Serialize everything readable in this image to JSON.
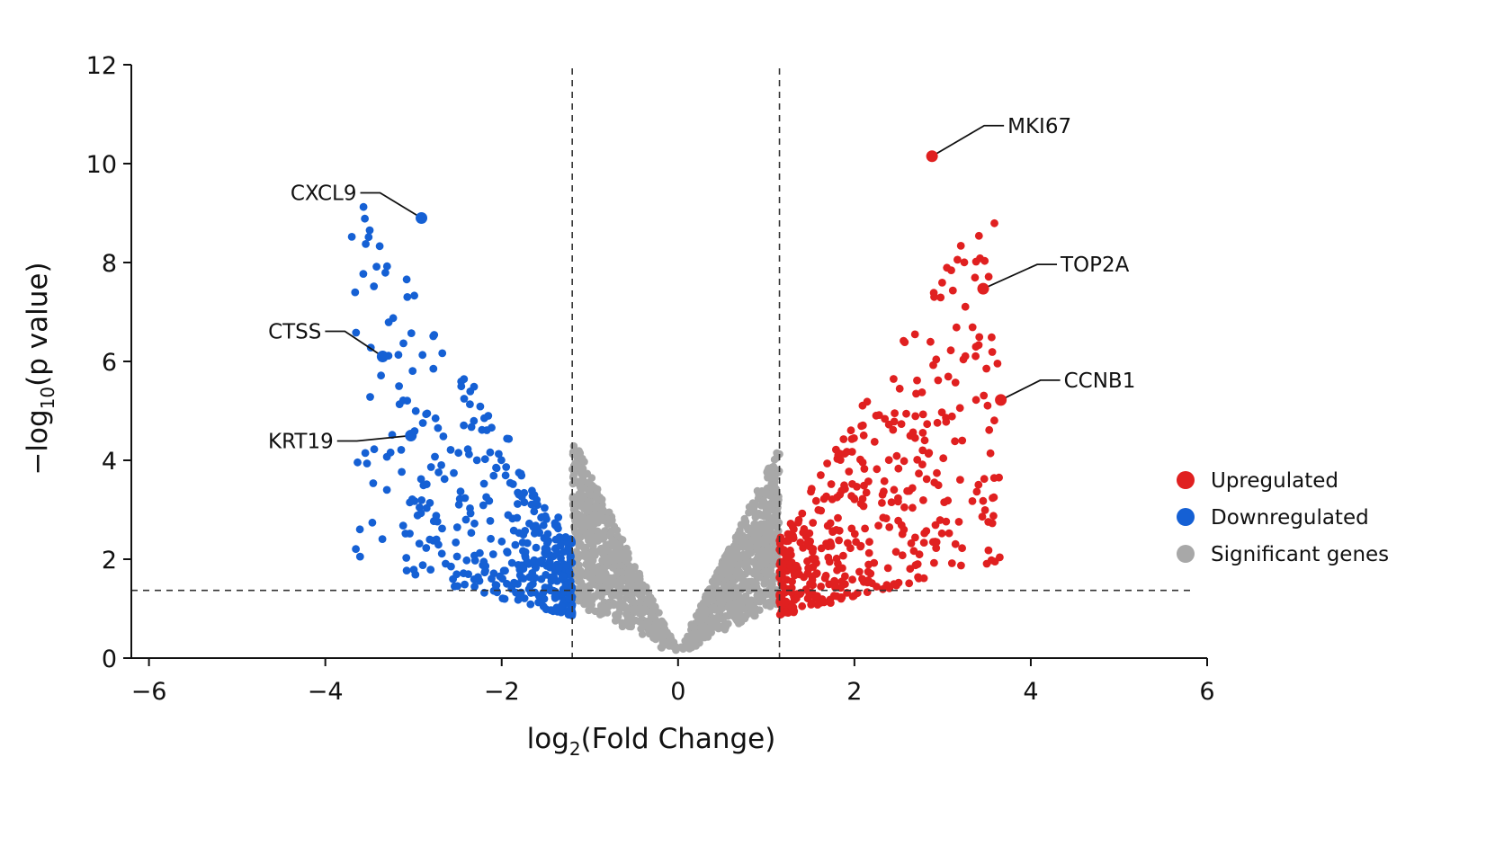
{
  "chart_data": {
    "type": "scatter",
    "title": "",
    "xlabel": {
      "prefix": "log",
      "sub": "2",
      "suffix": "(Fold Change)"
    },
    "ylabel": {
      "prefix": "−log",
      "sub": "10",
      "suffix": "(p value)"
    },
    "xlim": [
      -6.2,
      6
    ],
    "ylim": [
      0,
      12
    ],
    "xticks": [
      -6,
      -4,
      -2,
      0,
      2,
      4,
      6
    ],
    "xtick_labels": [
      "−6",
      "−4",
      "−2",
      "0",
      "2",
      "4",
      "6"
    ],
    "yticks": [
      0,
      2,
      4,
      6,
      8,
      10,
      12
    ],
    "ytick_labels": [
      "0",
      "2",
      "4",
      "6",
      "8",
      "10",
      "12"
    ],
    "thresholds": {
      "log2fc": [
        -1.2,
        1.15
      ],
      "neg_log10_p": 1.37
    },
    "grid": false,
    "legend_position": "right",
    "series": [
      {
        "name": "Upregulated",
        "color": "#e02020",
        "count": 420
      },
      {
        "name": "Downregulated",
        "color": "#1560d4",
        "count": 420
      },
      {
        "name": "Significant genes",
        "color": "#a8a8a8",
        "count": 1300
      }
    ],
    "labeled_points": [
      {
        "gene": "MKI67",
        "x": 2.88,
        "y": 10.15,
        "color": "#e02020"
      },
      {
        "gene": "TOP2A",
        "x": 3.46,
        "y": 7.47,
        "color": "#e02020"
      },
      {
        "gene": "CCNB1",
        "x": 3.66,
        "y": 5.22,
        "color": "#e02020"
      },
      {
        "gene": "CXCL9",
        "x": -2.91,
        "y": 8.9,
        "color": "#1560d4"
      },
      {
        "gene": "CTSS",
        "x": -3.35,
        "y": 6.1,
        "color": "#1560d4"
      },
      {
        "gene": "KRT19",
        "x": -3.03,
        "y": 4.5,
        "color": "#1560d4"
      }
    ]
  }
}
